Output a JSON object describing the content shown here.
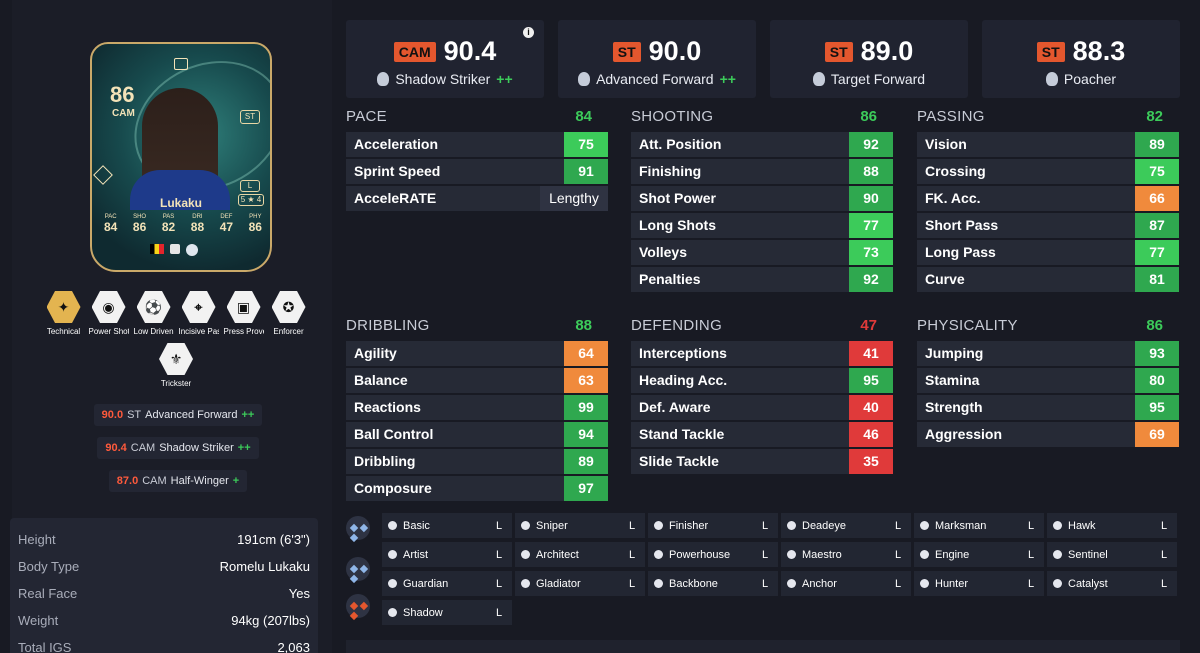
{
  "player": {
    "card": {
      "rating": "86",
      "position": "CAM",
      "alt_position": "ST",
      "foot": "L",
      "skill_weak": "5 ★ 4",
      "name": "Lukaku",
      "stats": [
        {
          "label": "PAC",
          "value": "84"
        },
        {
          "label": "SHO",
          "value": "86"
        },
        {
          "label": "PAS",
          "value": "82"
        },
        {
          "label": "DRI",
          "value": "88"
        },
        {
          "label": "DEF",
          "value": "47"
        },
        {
          "label": "PHY",
          "value": "86"
        }
      ]
    },
    "playstyles": [
      {
        "label": "Technical",
        "icon": "technical-icon",
        "plus": true
      },
      {
        "label": "Power Shot",
        "icon": "power-shot-icon",
        "plus": false
      },
      {
        "label": "Low Driven Shot",
        "icon": "low-driven-shot-icon",
        "plus": false
      },
      {
        "label": "Incisive Pass",
        "icon": "incisive-pass-icon",
        "plus": false
      },
      {
        "label": "Press Proven",
        "icon": "press-proven-icon",
        "plus": false
      },
      {
        "label": "Enforcer",
        "icon": "enforcer-icon",
        "plus": false
      },
      {
        "label": "Trickster",
        "icon": "trickster-icon",
        "plus": false
      }
    ],
    "role_list": [
      {
        "rating": "90.0",
        "pos": "ST",
        "name": "Advanced Forward",
        "plus": "++"
      },
      {
        "rating": "90.4",
        "pos": "CAM",
        "name": "Shadow Striker",
        "plus": "++"
      },
      {
        "rating": "87.0",
        "pos": "CAM",
        "name": "Half-Winger",
        "plus": "+"
      }
    ],
    "info": [
      {
        "key": "Height",
        "value": "191cm (6'3\")"
      },
      {
        "key": "Body Type",
        "value": "Romelu Lukaku"
      },
      {
        "key": "Real Face",
        "value": "Yes"
      },
      {
        "key": "Weight",
        "value": "94kg (207lbs)"
      },
      {
        "key": "Total IGS",
        "value": "2,063"
      }
    ]
  },
  "top_roles": [
    {
      "pos": "CAM",
      "value": "90.4",
      "name": "Shadow Striker",
      "plus": "++",
      "icon": "shadow-striker-icon"
    },
    {
      "pos": "ST",
      "value": "90.0",
      "name": "Advanced Forward",
      "plus": "++",
      "icon": "advanced-forward-icon"
    },
    {
      "pos": "ST",
      "value": "89.0",
      "name": "Target Forward",
      "plus": "",
      "icon": "target-forward-icon"
    },
    {
      "pos": "ST",
      "value": "88.3",
      "name": "Poacher",
      "plus": "",
      "icon": "poacher-icon"
    }
  ],
  "stat_groups": {
    "pace": {
      "title": "PACE",
      "value": "84",
      "stats": [
        {
          "name": "Acceleration",
          "value": "75"
        },
        {
          "name": "Sprint Speed",
          "value": "91"
        },
        {
          "name": "AcceleRATE",
          "value": "Lengthy"
        }
      ]
    },
    "shooting": {
      "title": "SHOOTING",
      "value": "86",
      "stats": [
        {
          "name": "Att. Position",
          "value": "92"
        },
        {
          "name": "Finishing",
          "value": "88"
        },
        {
          "name": "Shot Power",
          "value": "90"
        },
        {
          "name": "Long Shots",
          "value": "77"
        },
        {
          "name": "Volleys",
          "value": "73"
        },
        {
          "name": "Penalties",
          "value": "92"
        }
      ]
    },
    "passing": {
      "title": "PASSING",
      "value": "82",
      "stats": [
        {
          "name": "Vision",
          "value": "89"
        },
        {
          "name": "Crossing",
          "value": "75"
        },
        {
          "name": "FK. Acc.",
          "value": "66"
        },
        {
          "name": "Short Pass",
          "value": "87"
        },
        {
          "name": "Long Pass",
          "value": "77"
        },
        {
          "name": "Curve",
          "value": "81"
        }
      ]
    },
    "dribbling": {
      "title": "DRIBBLING",
      "value": "88",
      "stats": [
        {
          "name": "Agility",
          "value": "64"
        },
        {
          "name": "Balance",
          "value": "63"
        },
        {
          "name": "Reactions",
          "value": "99"
        },
        {
          "name": "Ball Control",
          "value": "94"
        },
        {
          "name": "Dribbling",
          "value": "89"
        },
        {
          "name": "Composure",
          "value": "97"
        }
      ]
    },
    "defending": {
      "title": "DEFENDING",
      "value": "47",
      "stats": [
        {
          "name": "Interceptions",
          "value": "41"
        },
        {
          "name": "Heading Acc.",
          "value": "95"
        },
        {
          "name": "Def. Aware",
          "value": "40"
        },
        {
          "name": "Stand Tackle",
          "value": "46"
        },
        {
          "name": "Slide Tackle",
          "value": "35"
        }
      ]
    },
    "physicality": {
      "title": "PHYSICALITY",
      "value": "86",
      "stats": [
        {
          "name": "Jumping",
          "value": "93"
        },
        {
          "name": "Stamina",
          "value": "80"
        },
        {
          "name": "Strength",
          "value": "95"
        },
        {
          "name": "Aggression",
          "value": "69"
        }
      ]
    }
  },
  "chemistry_styles": [
    {
      "name": "Basic",
      "grade": "L",
      "icon": "basic-icon"
    },
    {
      "name": "Sniper",
      "grade": "L",
      "icon": "sniper-icon"
    },
    {
      "name": "Finisher",
      "grade": "L",
      "icon": "finisher-icon"
    },
    {
      "name": "Deadeye",
      "grade": "L",
      "icon": "deadeye-icon"
    },
    {
      "name": "Marksman",
      "grade": "L",
      "icon": "marksman-icon"
    },
    {
      "name": "Hawk",
      "grade": "L",
      "icon": "hawk-icon"
    },
    {
      "name": "Artist",
      "grade": "L",
      "icon": "artist-icon"
    },
    {
      "name": "Architect",
      "grade": "L",
      "icon": "architect-icon"
    },
    {
      "name": "Powerhouse",
      "grade": "L",
      "icon": "powerhouse-icon"
    },
    {
      "name": "Maestro",
      "grade": "L",
      "icon": "maestro-icon"
    },
    {
      "name": "Engine",
      "grade": "L",
      "icon": "engine-icon"
    },
    {
      "name": "Sentinel",
      "grade": "L",
      "icon": "sentinel-icon"
    },
    {
      "name": "Guardian",
      "grade": "L",
      "icon": "guardian-icon"
    },
    {
      "name": "Gladiator",
      "grade": "L",
      "icon": "gladiator-icon"
    },
    {
      "name": "Backbone",
      "grade": "L",
      "icon": "backbone-icon"
    },
    {
      "name": "Anchor",
      "grade": "L",
      "icon": "anchor-icon"
    },
    {
      "name": "Hunter",
      "grade": "L",
      "icon": "hunter-icon"
    },
    {
      "name": "Catalyst",
      "grade": "L",
      "icon": "catalyst-icon"
    },
    {
      "name": "Shadow",
      "grade": "L",
      "icon": "shadow-icon"
    }
  ],
  "colors": {
    "green_high": "#2fa84f",
    "green_light": "#3ccb5a",
    "orange": "#f08a3c",
    "red": "#e03a3a",
    "position_badge": "#e4572e"
  }
}
